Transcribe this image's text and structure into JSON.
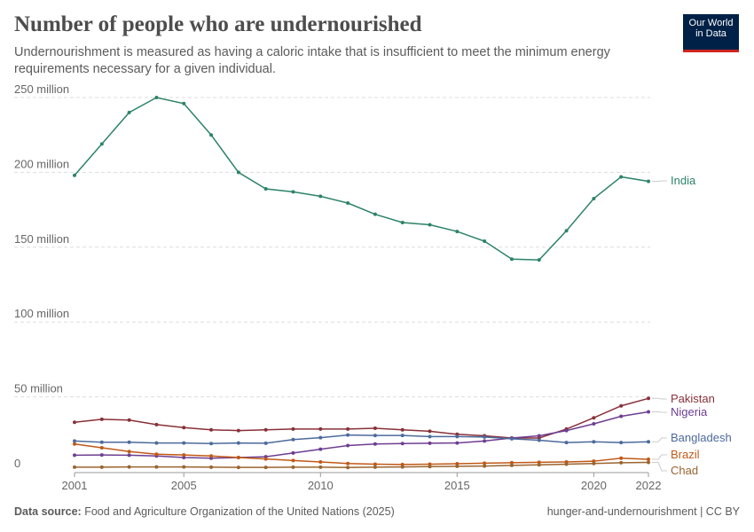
{
  "title": "Number of people who are undernourished",
  "subtitle": "Undernourishment is measured as having a caloric intake that is insufficient to meet the minimum energy requirements necessary for a given individual.",
  "logo": {
    "line1": "Our World",
    "line2": "in Data"
  },
  "footer": {
    "source_label": "Data source:",
    "source": "Food and Agriculture Organization of the United Nations (2025)",
    "right": "hunger-and-undernourishment | CC BY"
  },
  "chart_data": {
    "type": "line",
    "title": "Number of people who are undernourished",
    "x": [
      2001,
      2002,
      2003,
      2004,
      2005,
      2006,
      2007,
      2008,
      2009,
      2010,
      2011,
      2012,
      2013,
      2014,
      2015,
      2016,
      2017,
      2018,
      2019,
      2020,
      2021,
      2022
    ],
    "xticks": [
      "2001",
      "2005",
      "2010",
      "2015",
      "2020",
      "2022"
    ],
    "yticks": [
      {
        "v": 0,
        "label": "0"
      },
      {
        "v": 50,
        "label": "50 million"
      },
      {
        "v": 100,
        "label": "100 million"
      },
      {
        "v": 150,
        "label": "150 million"
      },
      {
        "v": 200,
        "label": "200 million"
      },
      {
        "v": 250,
        "label": "250 million"
      }
    ],
    "ylim": [
      0,
      250
    ],
    "yunit": "million",
    "grid": "horizontal dashed",
    "legend": "right-end labels",
    "series": [
      {
        "name": "India",
        "color": "#2c8465",
        "values": [
          198,
          219,
          240,
          250,
          246,
          225,
          200,
          189,
          187,
          184,
          179.5,
          172,
          166.5,
          165,
          160.5,
          154,
          142,
          141.5,
          161,
          182.5,
          197,
          194
        ]
      },
      {
        "name": "Pakistan",
        "color": "#883039",
        "values": [
          33,
          35,
          34.5,
          31.5,
          29.5,
          28,
          27.5,
          28,
          28.5,
          28.5,
          28.5,
          29,
          28,
          27,
          25,
          24,
          22.5,
          22.5,
          28.5,
          36,
          44,
          49
        ]
      },
      {
        "name": "Nigeria",
        "color": "#6d3e91",
        "values": [
          11,
          11.2,
          11,
          10.5,
          9.5,
          9,
          9.5,
          10,
          12.5,
          15,
          17.5,
          18.5,
          18.8,
          19,
          19.2,
          20.5,
          22.5,
          24,
          27.5,
          32,
          37,
          40
        ]
      },
      {
        "name": "Bangladesh",
        "color": "#4c6a9c",
        "values": [
          20.5,
          19.7,
          19.7,
          19.2,
          19.2,
          18.8,
          19.2,
          19,
          21.5,
          22.7,
          24.5,
          24.2,
          24.2,
          23.5,
          23.5,
          23.2,
          22,
          21,
          19.5,
          20,
          19.5,
          20
        ]
      },
      {
        "name": "Brazil",
        "color": "#c05917",
        "values": [
          18.5,
          16,
          13.5,
          11.7,
          11.2,
          10.5,
          9.5,
          8.5,
          7.5,
          6.5,
          5.5,
          5,
          4.8,
          5,
          5.3,
          5.7,
          6,
          6.3,
          6.5,
          7,
          9,
          8.3
        ]
      },
      {
        "name": "Chad",
        "color": "#9a652f",
        "values": [
          3,
          3,
          3.2,
          3.2,
          3.2,
          3,
          2.9,
          2.9,
          3,
          3,
          2.8,
          3,
          3.2,
          3.4,
          3.6,
          3.8,
          4.2,
          4.6,
          5,
          5.5,
          6,
          6.2
        ]
      }
    ]
  }
}
